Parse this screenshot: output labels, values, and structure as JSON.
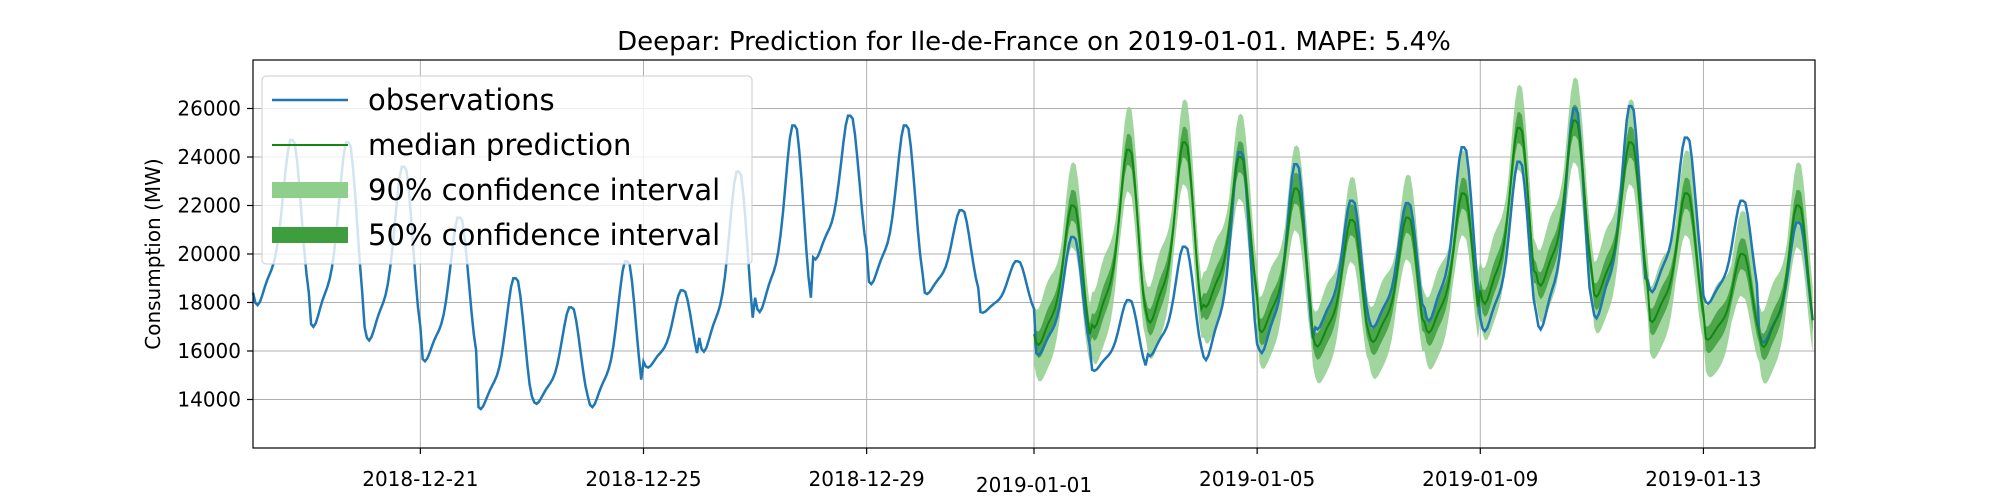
{
  "chart_data": {
    "type": "line",
    "title": "Deepar: Prediction for Ile-de-France on 2019-01-01. MAPE: 5.4%",
    "xlabel": "",
    "ylabel": "Consumption (MW)",
    "xlim": [
      "2018-12-18",
      "2019-01-15"
    ],
    "ylim": [
      12000,
      28000
    ],
    "grid": true,
    "legend_position": "top-left",
    "x_ticks": [
      "2018-12-21",
      "2018-12-25",
      "2018-12-29",
      "2019-01-01",
      "2019-01-05",
      "2019-01-09",
      "2019-01-13"
    ],
    "y_ticks": [
      14000,
      16000,
      18000,
      20000,
      22000,
      24000,
      26000
    ],
    "legend": [
      "observations",
      "median prediction",
      "90% confidence interval",
      "50% confidence interval"
    ],
    "colors": {
      "observations": "#1f77b4",
      "median": "#118811",
      "ci90": "#8fcf8c",
      "ci50": "#3e9e3e"
    },
    "observations": {
      "name": "observations",
      "daily_min": [
        17000,
        16000,
        15500,
        14800,
        12900,
        13300,
        12900,
        14900,
        15000,
        16600,
        19000,
        17900,
        17900,
        17300,
        15200,
        14800,
        15200,
        14500,
        14900,
        16200,
        16300,
        16300,
        15900,
        15700,
        16200,
        17600,
        17400,
        15700
      ],
      "daily_max": [
        24700,
        24600,
        23600,
        21500,
        19000,
        17800,
        19700,
        18500,
        23400,
        25300,
        25700,
        25300,
        21800,
        19700,
        20700,
        18100,
        20300,
        24200,
        23700,
        22200,
        22100,
        24400,
        23800,
        26000,
        26100,
        24800,
        22200,
        21300
      ]
    },
    "forecast": {
      "start": "2019-01-01",
      "median_daily_min": [
        15500,
        16000,
        16200,
        17000,
        16000,
        15500,
        15700,
        16000,
        17000,
        17800,
        17400,
        16500,
        16000,
        15400
      ],
      "median_daily_max": [
        22000,
        24300,
        24600,
        24000,
        22700,
        21400,
        21500,
        22500,
        25200,
        25500,
        24600,
        22500,
        20000,
        22000
      ],
      "ci50_halfwidth": 550,
      "ci90_halfwidth": 1500
    }
  }
}
